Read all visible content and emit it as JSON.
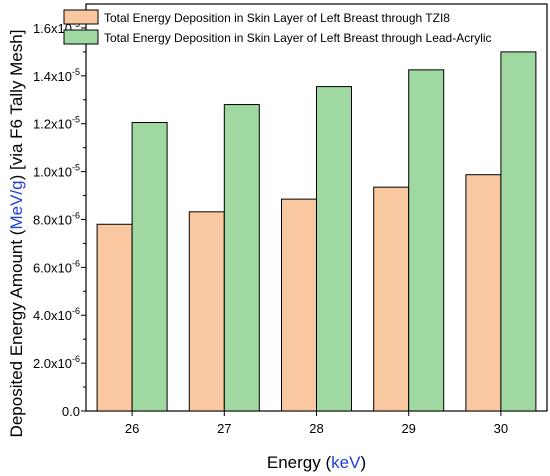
{
  "chart_data": {
    "type": "bar",
    "categories": [
      "26",
      "27",
      "28",
      "29",
      "30"
    ],
    "series": [
      {
        "name": "Total Energy Deposition in Skin Layer of Left Breast through TZI8",
        "values": [
          7.8e-06,
          8.32e-06,
          8.85e-06,
          9.35e-06,
          9.87e-06
        ],
        "color": "#fac8a0"
      },
      {
        "name": "Total Energy Deposition in Skin Layer of Left Breast through Lead-Acrylic",
        "values": [
          1.205e-05,
          1.28e-05,
          1.355e-05,
          1.425e-05,
          1.5e-05
        ],
        "color": "#9fd8a0"
      }
    ],
    "xlabel": {
      "prefix": "Energy (",
      "unit": "keV",
      "suffix": ")"
    },
    "ylabel": {
      "prefix": "Deposited Energy Amount (",
      "unit": "MeV/g",
      "suffix": ") [via F6 Tally Mesh]"
    },
    "unit_color": "#1f3fd6",
    "ylim": [
      0,
      1.7e-05
    ],
    "yticks": [
      {
        "value": 0,
        "mantissa": "0.0",
        "exp": ""
      },
      {
        "value": 2e-06,
        "mantissa": "2.0x10",
        "exp": "-6"
      },
      {
        "value": 4e-06,
        "mantissa": "4.0x10",
        "exp": "-6"
      },
      {
        "value": 6e-06,
        "mantissa": "6.0x10",
        "exp": "-6"
      },
      {
        "value": 8e-06,
        "mantissa": "8.0x10",
        "exp": "-6"
      },
      {
        "value": 1e-05,
        "mantissa": "1.0x10",
        "exp": "-5"
      },
      {
        "value": 1.2e-05,
        "mantissa": "1.2x10",
        "exp": "-5"
      },
      {
        "value": 1.4e-05,
        "mantissa": "1.4x10",
        "exp": "-5"
      },
      {
        "value": 1.6e-05,
        "mantissa": "1.6x10",
        "exp": "-5"
      }
    ],
    "legend": "top-left, inside plot",
    "grid": false
  }
}
